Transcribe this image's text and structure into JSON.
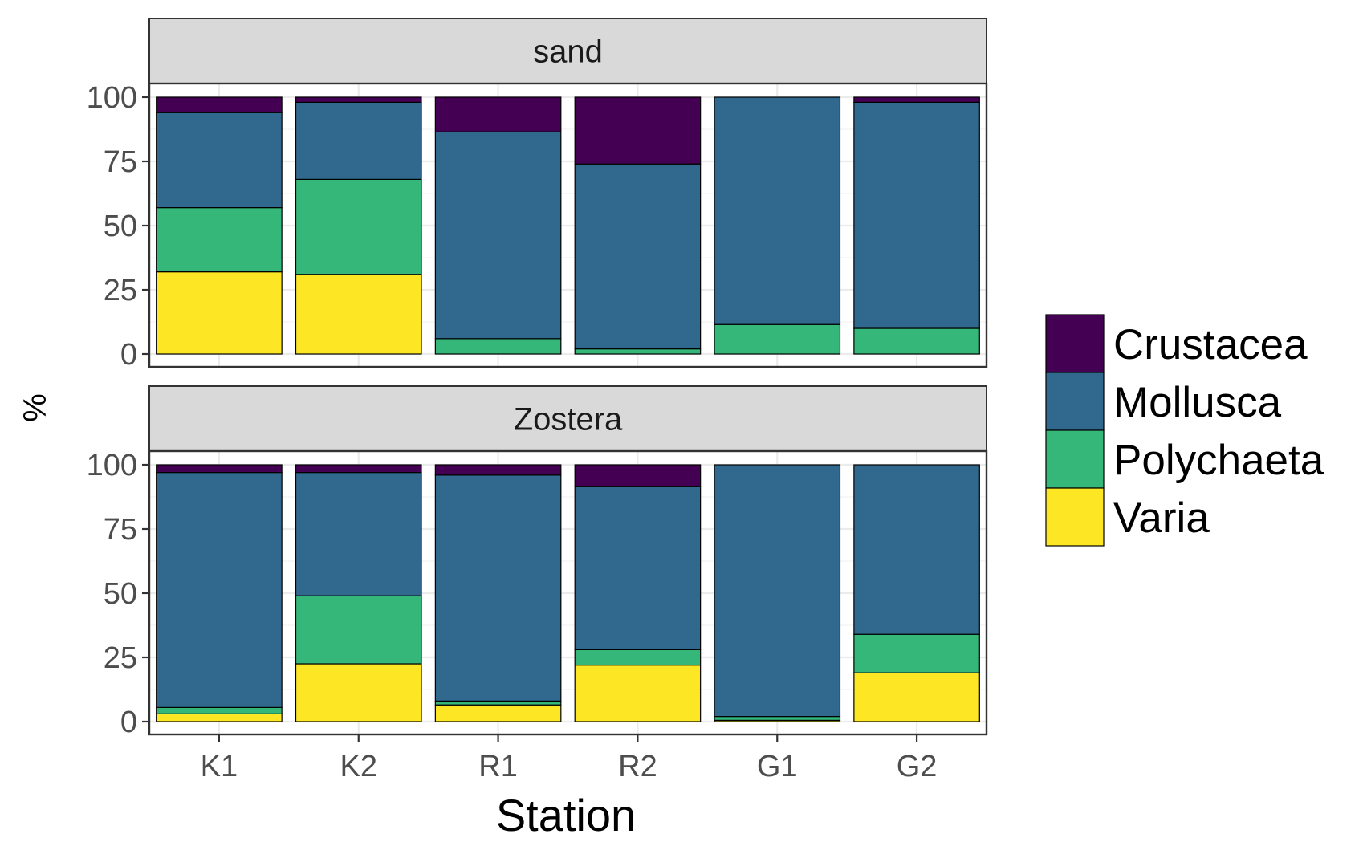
{
  "chart_data": {
    "type": "bar",
    "stacked": true,
    "xlabel": "Station",
    "ylabel": "%",
    "ylim": [
      0,
      100
    ],
    "yticks": [
      0,
      25,
      50,
      75,
      100
    ],
    "categories": [
      "K1",
      "K2",
      "R1",
      "R2",
      "G1",
      "G2"
    ],
    "legend": {
      "placement": "right",
      "entries": [
        "Crustacea",
        "Mollusca",
        "Polychaeta",
        "Varia"
      ]
    },
    "colors": {
      "Varia": "#FDE725",
      "Polychaeta": "#35B779",
      "Mollusca": "#31688E",
      "Crustacea": "#440154"
    },
    "grid": true,
    "facets": [
      {
        "label": "sand",
        "series": [
          {
            "name": "Varia",
            "values": [
              32,
              31,
              0,
              0,
              0,
              0
            ]
          },
          {
            "name": "Polychaeta",
            "values": [
              25,
              37,
              6,
              2,
              11.5,
              10
            ]
          },
          {
            "name": "Mollusca",
            "values": [
              37,
              30,
              80.5,
              72,
              88.5,
              88
            ]
          },
          {
            "name": "Crustacea",
            "values": [
              6,
              2,
              13.5,
              26,
              0,
              2
            ]
          }
        ]
      },
      {
        "label": "Zostera",
        "series": [
          {
            "name": "Varia",
            "values": [
              3,
              22.5,
              6.5,
              22,
              0.5,
              19
            ]
          },
          {
            "name": "Polychaeta",
            "values": [
              2.5,
              26.5,
              1.5,
              6,
              1.5,
              15
            ]
          },
          {
            "name": "Mollusca",
            "values": [
              91.5,
              48,
              88,
              63.5,
              98,
              66
            ]
          },
          {
            "name": "Crustacea",
            "values": [
              3,
              3,
              4,
              8.5,
              0,
              0
            ]
          }
        ]
      }
    ]
  }
}
